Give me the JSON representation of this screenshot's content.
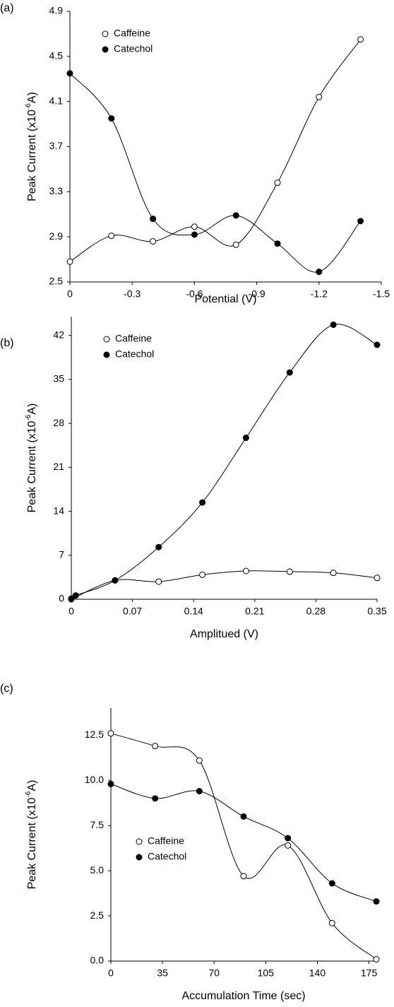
{
  "chart_data": [
    {
      "type": "line",
      "label": "(a)",
      "xlabel": "Potential (V)",
      "ylabel_parts": [
        "Peak Current (x10",
        "-6",
        "A)"
      ],
      "xlim": [
        0,
        -1.5
      ],
      "xticks": [
        0,
        -0.3,
        -0.6,
        -0.9,
        -1.2,
        -1.5
      ],
      "ylim": [
        2.5,
        4.9
      ],
      "yticks": [
        2.5,
        2.9,
        3.3,
        3.7,
        4.1,
        4.5,
        4.9
      ],
      "legend": "upper left",
      "series": [
        {
          "name": "Caffeine",
          "color": "#000000",
          "marker_fill": "#ffffff",
          "x": [
            0,
            -0.2,
            -0.4,
            -0.6,
            -0.8,
            -1.0,
            -1.2,
            -1.4
          ],
          "values": [
            2.68,
            2.91,
            2.86,
            2.99,
            2.83,
            3.38,
            4.14,
            4.65
          ]
        },
        {
          "name": "Catechol",
          "color": "#000000",
          "marker_fill": "#000000",
          "x": [
            0,
            -0.2,
            -0.4,
            -0.6,
            -0.8,
            -1.0,
            -1.2,
            -1.4
          ],
          "values": [
            4.35,
            3.95,
            3.06,
            2.92,
            3.09,
            2.84,
            2.59,
            3.04
          ]
        }
      ]
    },
    {
      "type": "line",
      "label": "(b)",
      "xlabel": "Amplitued (V)",
      "ylabel_parts": [
        "Peak Current (x10",
        "-6",
        "A)"
      ],
      "xlim": [
        0,
        0.35
      ],
      "xticks": [
        0,
        0.07,
        0.14,
        0.21,
        0.28,
        0.35
      ],
      "ylim": [
        0,
        45
      ],
      "yticks": [
        0,
        7,
        14,
        21,
        28,
        35,
        42
      ],
      "legend": "upper left",
      "series": [
        {
          "name": "Caffeine",
          "color": "#000000",
          "marker_fill": "#ffffff",
          "x": [
            0,
            0.05,
            0.1,
            0.15,
            0.2,
            0.25,
            0.3,
            0.35
          ],
          "values": [
            0,
            3.0,
            2.8,
            3.9,
            4.5,
            4.4,
            4.2,
            3.4
          ]
        },
        {
          "name": "Catechol",
          "color": "#000000",
          "marker_fill": "#000000",
          "x": [
            0,
            0.005,
            0.05,
            0.1,
            0.15,
            0.2,
            0.25,
            0.3,
            0.35
          ],
          "values": [
            0.1,
            0.6,
            3.0,
            8.3,
            15.4,
            25.7,
            36.1,
            43.7,
            40.5
          ]
        }
      ]
    },
    {
      "type": "line",
      "label": "(c)",
      "xlabel": "Accumulation Time (sec)",
      "ylabel_parts": [
        "Peak Current (x10",
        "-6",
        "A)"
      ],
      "xlim": [
        0,
        180
      ],
      "xticks": [
        0,
        35,
        70,
        105,
        140,
        175
      ],
      "ylim": [
        0,
        14
      ],
      "yticks": [
        {
          "value": 0,
          "label": "0.0"
        },
        {
          "value": 2.5,
          "label": "2.5"
        },
        {
          "value": 5,
          "label": "5.0"
        },
        {
          "value": 7.5,
          "label": "7.5"
        },
        {
          "value": 10,
          "label": "10.0"
        },
        {
          "value": 12.5,
          "label": "12.5"
        }
      ],
      "legend": "center left",
      "series": [
        {
          "name": "Caffeine",
          "color": "#000000",
          "marker_fill": "#ffffff",
          "x": [
            0,
            30,
            60,
            90,
            120,
            150,
            180
          ],
          "values": [
            12.6,
            11.9,
            11.1,
            4.7,
            6.4,
            2.1,
            0.1
          ]
        },
        {
          "name": "Catechol",
          "color": "#000000",
          "marker_fill": "#000000",
          "x": [
            0,
            30,
            60,
            90,
            120,
            150,
            180
          ],
          "values": [
            9.8,
            9.0,
            9.4,
            8.0,
            6.8,
            4.3,
            3.3
          ]
        }
      ]
    }
  ]
}
